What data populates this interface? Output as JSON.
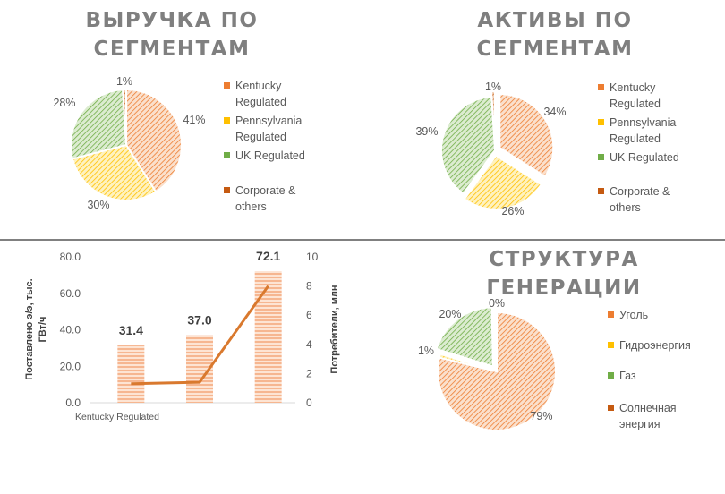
{
  "colors": {
    "orange": "#ed7d31",
    "orange_fill": "#f4b183",
    "yellow": "#ffc000",
    "yellow_fill": "#ffe27a",
    "green": "#70ad47",
    "green_fill": "#a9d18e",
    "brown": "#c55a11",
    "divider": "#808080",
    "line": "#d9792e"
  },
  "chart_data": [
    {
      "type": "pie",
      "title": "ВЫРУЧКА ПО СЕГМЕНТАМ",
      "title_lines": [
        "ВЫРУЧКА ПО",
        "СЕГМЕНТАМ"
      ],
      "categories": [
        "Kentucky Regulated",
        "Pennsylvania Regulated",
        "UK Regulated",
        "Corporate & others"
      ],
      "legend_lines": [
        [
          "Kentucky",
          "Regulated"
        ],
        [
          "Pennsylvania",
          "Regulated"
        ],
        [
          "UK Regulated"
        ],
        [
          "Corporate &",
          "others"
        ]
      ],
      "values": [
        41,
        30,
        28,
        1
      ],
      "labels": [
        "41%",
        "30%",
        "28%",
        "1%"
      ],
      "legend": "right"
    },
    {
      "type": "pie",
      "title": "АКТИВЫ ПО СЕГМЕНТАМ",
      "title_lines": [
        "АКТИВЫ ПО",
        "СЕГМЕНТАМ"
      ],
      "categories": [
        "Kentucky Regulated",
        "Pennsylvania Regulated",
        "UK Regulated",
        "Corporate & others"
      ],
      "legend_lines": [
        [
          "Kentucky",
          "Regulated"
        ],
        [
          "Pennsylvania",
          "Regulated"
        ],
        [
          "UK Regulated"
        ],
        [
          "Corporate &",
          "others"
        ]
      ],
      "values": [
        34,
        26,
        39,
        1
      ],
      "labels": [
        "34%",
        "26%",
        "39%",
        "1%"
      ],
      "legend": "right"
    },
    {
      "type": "bar",
      "title": "",
      "categories": [
        "Kentucky Regulated",
        "",
        ""
      ],
      "series": [
        {
          "values": [
            31.4,
            37.0,
            72.1
          ],
          "labels": [
            "31.4",
            "37.0",
            "72.1"
          ]
        },
        {
          "values": [
            1.3,
            1.4,
            8.0
          ]
        }
      ],
      "ylabel": "Поставлено э/э, тыс. ГВт/ч",
      "ylabel_lines": [
        "Поставлено э/э,  тыс.",
        "ГВт/ч"
      ],
      "y2label": "Потребители, млн",
      "ylim": [
        0,
        80
      ],
      "y2lim": [
        0,
        10
      ],
      "yticks": [
        "0.0",
        "20.0",
        "40.0",
        "60.0",
        "80.0"
      ],
      "y2ticks": [
        "0",
        "2",
        "4",
        "6",
        "8",
        "10"
      ]
    },
    {
      "type": "pie",
      "title": "СТРУКТУРА ГЕНЕРАЦИИ",
      "title_lines": [
        "СТРУКТУРА",
        "ГЕНЕРАЦИИ"
      ],
      "categories": [
        "Уголь",
        "Гидроэнергия",
        "Газ",
        "Солнечная энергия"
      ],
      "legend_lines": [
        [
          "Уголь"
        ],
        [
          "Гидроэнергия"
        ],
        [
          "Газ"
        ],
        [
          "Солнечная",
          "энергия"
        ]
      ],
      "values": [
        79,
        1,
        20,
        0.3
      ],
      "labels": [
        "79%",
        "1%",
        "20%",
        "0%"
      ],
      "legend": "right"
    }
  ]
}
